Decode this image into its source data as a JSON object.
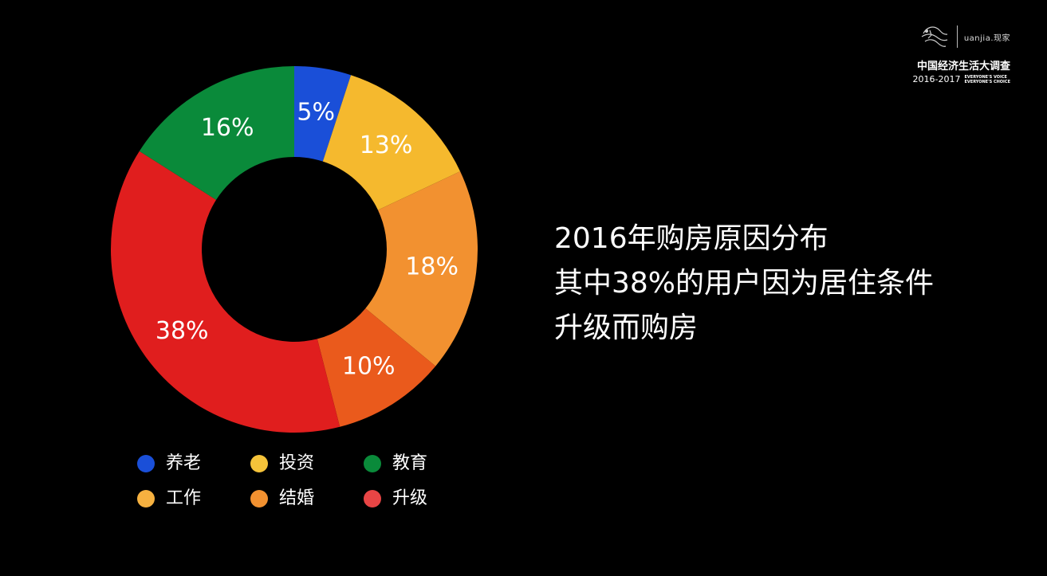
{
  "chart_data": {
    "type": "pie",
    "donut": true,
    "slices": [
      {
        "label": "养老",
        "value": 5,
        "text": "5%",
        "color": "#1a4fd8",
        "legend_color": "#1a4fd8"
      },
      {
        "label": "投资",
        "value": 13,
        "text": "13%",
        "color": "#f5b92e",
        "legend_color": "#f5c33a"
      },
      {
        "label": "结婚",
        "value": 18,
        "text": "18%",
        "color": "#f29130",
        "legend_color": "#f29130"
      },
      {
        "label": "工作",
        "value": 10,
        "text": "10%",
        "color": "#ea5a1c",
        "legend_color": "#f6b140"
      },
      {
        "label": "升级",
        "value": 38,
        "text": "38%",
        "color": "#e01e1e",
        "legend_color": "#e84545"
      },
      {
        "label": "教育",
        "value": 16,
        "text": "16%",
        "color": "#0a8a3a",
        "legend_color": "#0a8a3a"
      }
    ],
    "legend_order": [
      "养老",
      "投资",
      "教育",
      "工作",
      "结婚",
      "升级"
    ],
    "legend_placement": "bottom"
  },
  "headline": {
    "lines": [
      "2016年购房原因分布",
      "其中38%的用户因为居住条件",
      "升级而购房"
    ]
  },
  "brand": {
    "wordmark": "uanjia.现家",
    "title": "中国经济生活大调查",
    "years": "2016-2017",
    "slogan_1": "EVERYONE'S VOICE",
    "slogan_2": "EVERYONE'S CHOICE"
  }
}
